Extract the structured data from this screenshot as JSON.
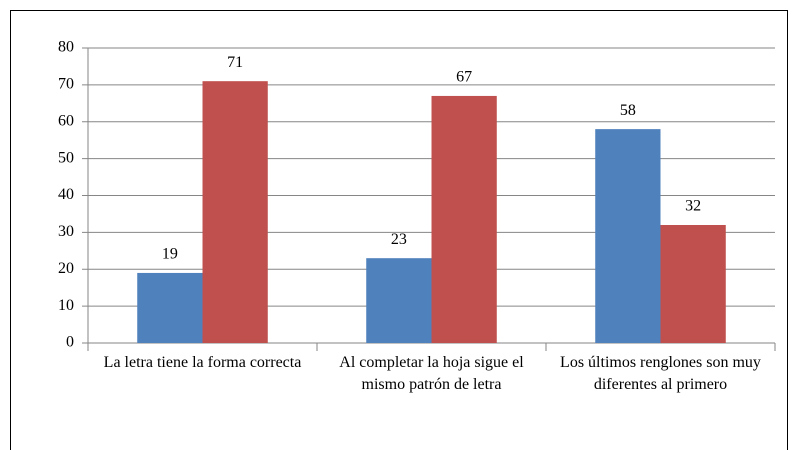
{
  "chart_data": {
    "type": "bar",
    "categories": [
      "La letra tiene la forma correcta",
      "Al completar la hoja sigue el mismo patrón de letra",
      "Los últimos renglones son muy diferentes al primero"
    ],
    "series": [
      {
        "color": "#4f81bd",
        "values": [
          19,
          23,
          58
        ]
      },
      {
        "color": "#c0504d",
        "values": [
          71,
          67,
          32
        ]
      }
    ],
    "ylim": [
      0,
      80
    ],
    "yticks": [
      0,
      10,
      20,
      30,
      40,
      50,
      60,
      70,
      80
    ],
    "grid": true
  }
}
